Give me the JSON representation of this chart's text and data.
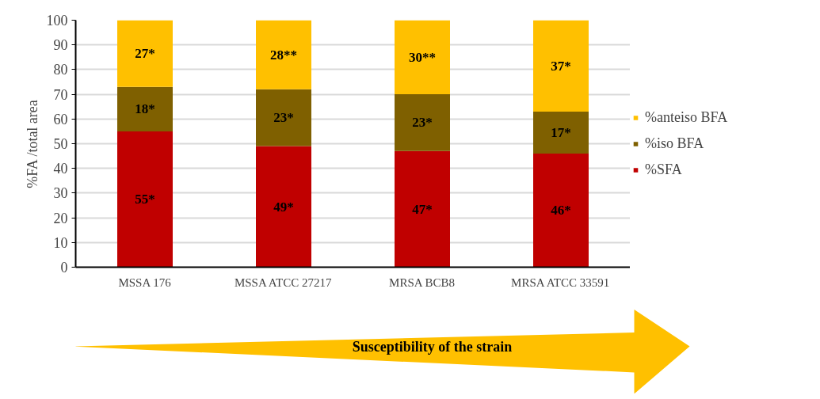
{
  "chart_data": {
    "type": "bar",
    "stacked": true,
    "ylabel": "%FA /total area",
    "categories": [
      "MSSA 176",
      "MSSA ATCC 27217",
      "MRSA BCB8",
      "MRSA ATCC 33591"
    ],
    "series": [
      {
        "name": "%SFA",
        "color": "#c00000",
        "values": [
          55,
          49,
          47,
          46
        ],
        "value_labels": [
          "55*",
          "49*",
          "47*",
          "46*"
        ]
      },
      {
        "name": "%iso BFA",
        "color": "#7f6000",
        "values": [
          18,
          23,
          23,
          17
        ],
        "value_labels": [
          "18*",
          "23*",
          "23*",
          "17*"
        ]
      },
      {
        "name": "%anteiso BFA",
        "color": "#ffc000",
        "values": [
          27,
          28,
          30,
          37
        ],
        "value_labels": [
          "27*",
          "28**",
          "30**",
          "37*"
        ]
      }
    ],
    "ylim": [
      0,
      100
    ],
    "yticks": [
      0,
      10,
      20,
      30,
      40,
      50,
      60,
      70,
      80,
      90,
      100
    ],
    "grid": "y",
    "legend": "right",
    "annotations": [
      "Susceptibility of the strain"
    ]
  }
}
